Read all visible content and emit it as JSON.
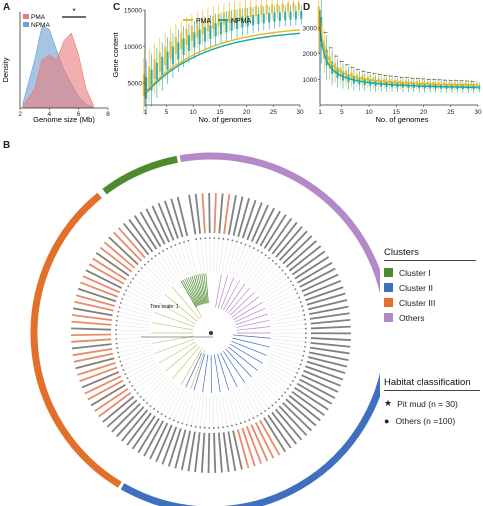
{
  "panels": {
    "A": "A",
    "B": "B",
    "C": "C",
    "D": "D"
  },
  "colors": {
    "pma": "#e8797c",
    "npma": "#6d9fd1",
    "pma_line": "#e6b81f",
    "npma_line": "#19a6a6",
    "c1": "#4f8a2e",
    "c2": "#3f6fbf",
    "c3": "#e2702b",
    "others": "#b489c9"
  },
  "panel_a": {
    "ylabel": "Density",
    "xlabel": "Genome size (Mb)",
    "legend": [
      "PMA",
      "NPMA"
    ],
    "sig": "*",
    "xticks": [
      "2",
      "4",
      "6",
      "8"
    ]
  },
  "panel_c": {
    "ylabel": "Gene content",
    "xlabel": "No. of genomes",
    "legend": [
      "PMA",
      "NPMA"
    ],
    "yticks": [
      "5000",
      "10000",
      "15000"
    ],
    "xticks": [
      "1",
      "5",
      "10",
      "15",
      "20",
      "25",
      "30"
    ]
  },
  "panel_d": {
    "xlabel": "No. of genomes",
    "yticks": [
      "1000",
      "2000",
      "3000"
    ],
    "xticks": [
      "1",
      "5",
      "10",
      "15",
      "20",
      "25",
      "30"
    ]
  },
  "tree": {
    "scale": "Tree scale: 1"
  },
  "clusters": {
    "title": "Clusters",
    "items": [
      "Cluster I",
      "Cluster II",
      "Cluster III",
      "Others"
    ]
  },
  "habitat": {
    "title": "Habitat classification",
    "items": [
      "Pit mud (n = 30)",
      "Others (n =100)"
    ]
  },
  "chart_data": [
    {
      "type": "area",
      "title": "",
      "xlabel": "Genome size (Mb)",
      "ylabel": "Density",
      "xlim": [
        2,
        8
      ],
      "series": [
        {
          "name": "PMA",
          "x": [
            2.2,
            3,
            3.5,
            4,
            4.5,
            5,
            5.5,
            6,
            6.5,
            7
          ],
          "values": [
            0.02,
            0.2,
            0.5,
            0.55,
            0.5,
            0.7,
            0.78,
            0.55,
            0.2,
            0.03
          ]
        },
        {
          "name": "NPMA",
          "x": [
            2.2,
            3,
            3.5,
            4,
            4.5,
            5,
            5.5,
            6,
            6.5,
            7
          ],
          "values": [
            0.05,
            0.5,
            0.85,
            0.82,
            0.6,
            0.4,
            0.25,
            0.12,
            0.04,
            0.01
          ]
        }
      ]
    },
    {
      "type": "line",
      "title": "",
      "xlabel": "No. of genomes",
      "ylabel": "Gene content",
      "ylim": [
        2000,
        15000
      ],
      "x": [
        1,
        5,
        10,
        15,
        20,
        25,
        30
      ],
      "series": [
        {
          "name": "PMA",
          "values": [
            3500,
            6000,
            8200,
            9800,
            10800,
            11600,
            12200
          ]
        },
        {
          "name": "NPMA",
          "values": [
            3200,
            5800,
            8000,
            9600,
            10700,
            11400,
            12000
          ]
        }
      ]
    },
    {
      "type": "line",
      "title": "",
      "xlabel": "No. of genomes",
      "ylabel": "",
      "ylim": [
        0,
        3700
      ],
      "x": [
        1,
        2,
        3,
        5,
        10,
        15,
        20,
        25,
        30
      ],
      "series": [
        {
          "name": "PMA",
          "values": [
            3300,
            2000,
            1500,
            1050,
            850,
            760,
            720,
            690,
            670
          ]
        },
        {
          "name": "NPMA",
          "values": [
            2900,
            1500,
            1100,
            850,
            700,
            650,
            620,
            600,
            590
          ]
        }
      ]
    }
  ]
}
